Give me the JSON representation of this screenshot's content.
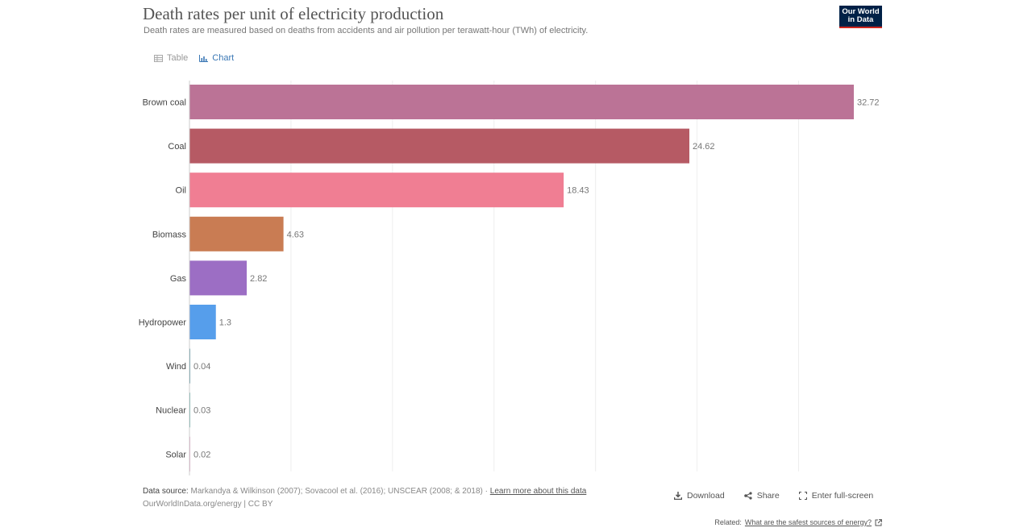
{
  "header": {
    "title": "Death rates per unit of electricity production",
    "subtitle": "Death rates are measured based on deaths from accidents and air pollution per terawatt-hour (TWh) of electricity.",
    "logo_line1": "Our World",
    "logo_line2": "in Data"
  },
  "tabs": [
    {
      "label": "Table",
      "icon": "table-icon",
      "active": false
    },
    {
      "label": "Chart",
      "icon": "chart-icon",
      "active": true
    }
  ],
  "chart_data": {
    "type": "bar",
    "orientation": "horizontal",
    "title": "Death rates per unit of electricity production",
    "xlabel": "",
    "ylabel": "",
    "xlim": [
      0,
      35
    ],
    "categories": [
      "Brown coal",
      "Coal",
      "Oil",
      "Biomass",
      "Gas",
      "Hydropower",
      "Wind",
      "Nuclear",
      "Solar"
    ],
    "values": [
      32.72,
      24.62,
      18.43,
      4.63,
      2.82,
      1.3,
      0.04,
      0.03,
      0.02
    ],
    "value_labels": [
      "32.72",
      "24.62",
      "18.43",
      "4.63",
      "2.82",
      "1.3",
      "0.04",
      "0.03",
      "0.02"
    ],
    "colors": [
      "#bb7396",
      "#b65a64",
      "#f07e93",
      "#c97c53",
      "#9c6ec4",
      "#569eeb",
      "#4a8f9e",
      "#5fb0a8",
      "#e4a9c8"
    ],
    "grid": true
  },
  "footer": {
    "data_source_label": "Data source:",
    "data_source_text": "Markandya & Wilkinson (2007); Sovacool et al. (2016); UNSCEAR (2008; & 2018) · ",
    "learn_more": "Learn more about this data",
    "license": "OurWorldInData.org/energy | CC BY",
    "download": "Download",
    "share": "Share",
    "fullscreen": "Enter full-screen",
    "related_label": "Related:",
    "related_link": "What are the safest sources of energy?"
  }
}
